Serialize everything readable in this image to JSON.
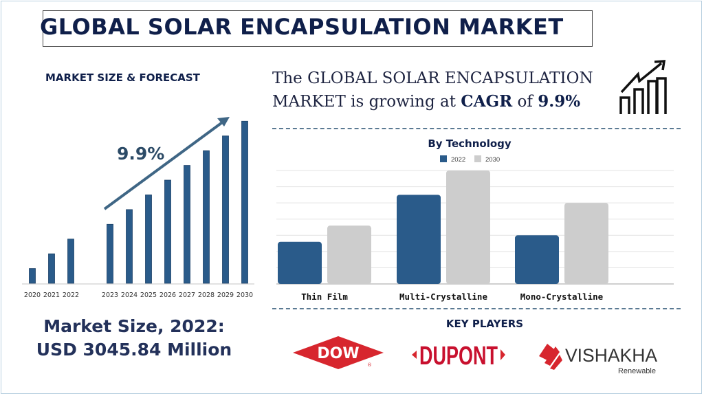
{
  "header": {
    "title": "GLOBAL SOLAR ENCAPSULATION MARKET"
  },
  "forecast": {
    "heading": "MARKET SIZE & FORECAST",
    "cagr_label": "9.9%"
  },
  "cagr_statement": {
    "line1": "The GLOBAL SOLAR ENCAPSULATION",
    "line2_prefix": "MARKET is growing at ",
    "line2_bold1": "CAGR",
    "line2_mid": " of ",
    "line2_bold2": "9.9%",
    "icon": "growth-chart-icon"
  },
  "market_size": {
    "line1": "Market Size, 2022:",
    "line2": "USD 3045.84 Million"
  },
  "key_players": {
    "heading": "KEY PLAYERS",
    "logos": [
      {
        "name": "DOW",
        "text": "DOW",
        "mark": "®"
      },
      {
        "name": "DUPONT",
        "text": "DUPONT"
      },
      {
        "name": "VISHAKHA",
        "text": "VISHAKHA",
        "sub": "Renewable"
      }
    ]
  },
  "colors": {
    "navy": "#0f1f4a",
    "bar_blue": "#2a5b8a",
    "bar_gray": "#cdcdcd",
    "arrow": "#3f6685",
    "logo_red": "#d7262e"
  },
  "chart_data": [
    {
      "type": "bar",
      "title": "MARKET SIZE & FORECAST",
      "categories": [
        "2020",
        "2021",
        "2022",
        "2023",
        "2024",
        "2025",
        "2026",
        "2027",
        "2028",
        "2029",
        "2030"
      ],
      "values": [
        1.0,
        2.0,
        3.0,
        4.0,
        5.0,
        6.0,
        7.0,
        8.0,
        9.0,
        10.0,
        11.0
      ],
      "annotation": "9.9%",
      "xlabel": "",
      "ylabel": "",
      "ylim": [
        0,
        11.2
      ],
      "grid": false
    },
    {
      "type": "bar",
      "title": "By Technology",
      "categories": [
        "Thin Film",
        "Multi-Crystalline",
        "Mono-Crystalline"
      ],
      "series": [
        {
          "name": "2022",
          "values": [
            2.6,
            5.5,
            3.0
          ]
        },
        {
          "name": "2030",
          "values": [
            3.6,
            7.0,
            5.0
          ]
        }
      ],
      "legend": "top-center",
      "xlabel": "",
      "ylabel": "",
      "ylim": [
        0,
        7
      ],
      "grid": true
    }
  ]
}
